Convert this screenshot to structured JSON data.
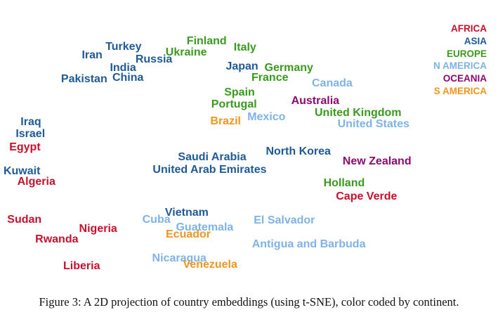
{
  "figure": {
    "caption": "Figure 3: A 2D projection of country embeddings (using t-SNE), color coded by continent."
  },
  "chart_data": {
    "type": "scatter",
    "title": "",
    "xlabel": "",
    "ylabel": "",
    "xlim": [
      0,
      100
    ],
    "ylim": [
      0,
      100
    ],
    "grid": false,
    "legend_position": "top-right",
    "legend": [
      {
        "name": "AFRICA",
        "color": "#c8102e"
      },
      {
        "name": "ASIA",
        "color": "#1f5a96"
      },
      {
        "name": "EUROPE",
        "color": "#3a9a1e"
      },
      {
        "name": "N AMERICA",
        "color": "#7fb3e6"
      },
      {
        "name": "OCEANIA",
        "color": "#8b0a6e"
      },
      {
        "name": "S AMERICA",
        "color": "#f2951f"
      }
    ],
    "points": [
      {
        "label": "Turkey",
        "continent": "ASIA",
        "x": 24.8,
        "y": 86.6
      },
      {
        "label": "Iran",
        "continent": "ASIA",
        "x": 18.5,
        "y": 83.4
      },
      {
        "label": "Finland",
        "continent": "EUROPE",
        "x": 41.5,
        "y": 88.6
      },
      {
        "label": "Italy",
        "continent": "EUROPE",
        "x": 49.2,
        "y": 86.3
      },
      {
        "label": "Ukraine",
        "continent": "EUROPE",
        "x": 37.4,
        "y": 84.4
      },
      {
        "label": "Russia",
        "continent": "ASIA",
        "x": 30.9,
        "y": 81.7
      },
      {
        "label": "India",
        "continent": "ASIA",
        "x": 24.7,
        "y": 78.8
      },
      {
        "label": "Pakistan",
        "continent": "ASIA",
        "x": 16.9,
        "y": 74.6
      },
      {
        "label": "China",
        "continent": "ASIA",
        "x": 25.7,
        "y": 75.1
      },
      {
        "label": "Japan",
        "continent": "ASIA",
        "x": 48.6,
        "y": 79.3
      },
      {
        "label": "Germany",
        "continent": "EUROPE",
        "x": 58.0,
        "y": 78.8
      },
      {
        "label": "France",
        "continent": "EUROPE",
        "x": 54.2,
        "y": 75.1
      },
      {
        "label": "Canada",
        "continent": "N AMERICA",
        "x": 66.7,
        "y": 72.9
      },
      {
        "label": "Spain",
        "continent": "EUROPE",
        "x": 48.1,
        "y": 69.5
      },
      {
        "label": "Portugal",
        "continent": "EUROPE",
        "x": 47.0,
        "y": 65.1
      },
      {
        "label": "Australia",
        "continent": "OCEANIA",
        "x": 63.3,
        "y": 66.6
      },
      {
        "label": "United Kingdom",
        "continent": "EUROPE",
        "x": 71.9,
        "y": 62.2
      },
      {
        "label": "Brazil",
        "continent": "S AMERICA",
        "x": 45.3,
        "y": 59.0
      },
      {
        "label": "Mexico",
        "continent": "N AMERICA",
        "x": 53.5,
        "y": 60.5
      },
      {
        "label": "United States",
        "continent": "N AMERICA",
        "x": 75.0,
        "y": 57.8
      },
      {
        "label": "Iraq",
        "continent": "ASIA",
        "x": 6.2,
        "y": 58.8
      },
      {
        "label": "Israel",
        "continent": "ASIA",
        "x": 6.1,
        "y": 54.4
      },
      {
        "label": "Egypt",
        "continent": "AFRICA",
        "x": 5.0,
        "y": 49.3
      },
      {
        "label": "North Korea",
        "continent": "ASIA",
        "x": 59.9,
        "y": 47.8
      },
      {
        "label": "Saudi Arabia",
        "continent": "ASIA",
        "x": 42.6,
        "y": 45.6
      },
      {
        "label": "New Zealand",
        "continent": "OCEANIA",
        "x": 75.7,
        "y": 44.1
      },
      {
        "label": "United Arab Emirates",
        "continent": "ASIA",
        "x": 42.1,
        "y": 41.0
      },
      {
        "label": "Kuwait",
        "continent": "ASIA",
        "x": 4.4,
        "y": 40.5
      },
      {
        "label": "Algeria",
        "continent": "AFRICA",
        "x": 7.3,
        "y": 36.6
      },
      {
        "label": "Holland",
        "continent": "EUROPE",
        "x": 69.1,
        "y": 36.1
      },
      {
        "label": "Cape Verde",
        "continent": "AFRICA",
        "x": 73.6,
        "y": 31.2
      },
      {
        "label": "Vietnam",
        "continent": "ASIA",
        "x": 37.5,
        "y": 25.1
      },
      {
        "label": "Sudan",
        "continent": "AFRICA",
        "x": 4.9,
        "y": 22.7
      },
      {
        "label": "Cuba",
        "continent": "N AMERICA",
        "x": 31.4,
        "y": 22.7
      },
      {
        "label": "El Salvador",
        "continent": "N AMERICA",
        "x": 57.1,
        "y": 22.4
      },
      {
        "label": "Guatemala",
        "continent": "N AMERICA",
        "x": 41.1,
        "y": 19.8
      },
      {
        "label": "Nigeria",
        "continent": "AFRICA",
        "x": 19.7,
        "y": 19.3
      },
      {
        "label": "Ecuador",
        "continent": "S AMERICA",
        "x": 37.8,
        "y": 17.1
      },
      {
        "label": "Rwanda",
        "continent": "AFRICA",
        "x": 11.4,
        "y": 15.4
      },
      {
        "label": "Antigua and Barbuda",
        "continent": "N AMERICA",
        "x": 62.0,
        "y": 13.4
      },
      {
        "label": "Nicaragua",
        "continent": "N AMERICA",
        "x": 36.0,
        "y": 8.3
      },
      {
        "label": "Venezuela",
        "continent": "S AMERICA",
        "x": 42.2,
        "y": 5.9
      },
      {
        "label": "Liberia",
        "continent": "AFRICA",
        "x": 16.4,
        "y": 5.4
      }
    ]
  }
}
